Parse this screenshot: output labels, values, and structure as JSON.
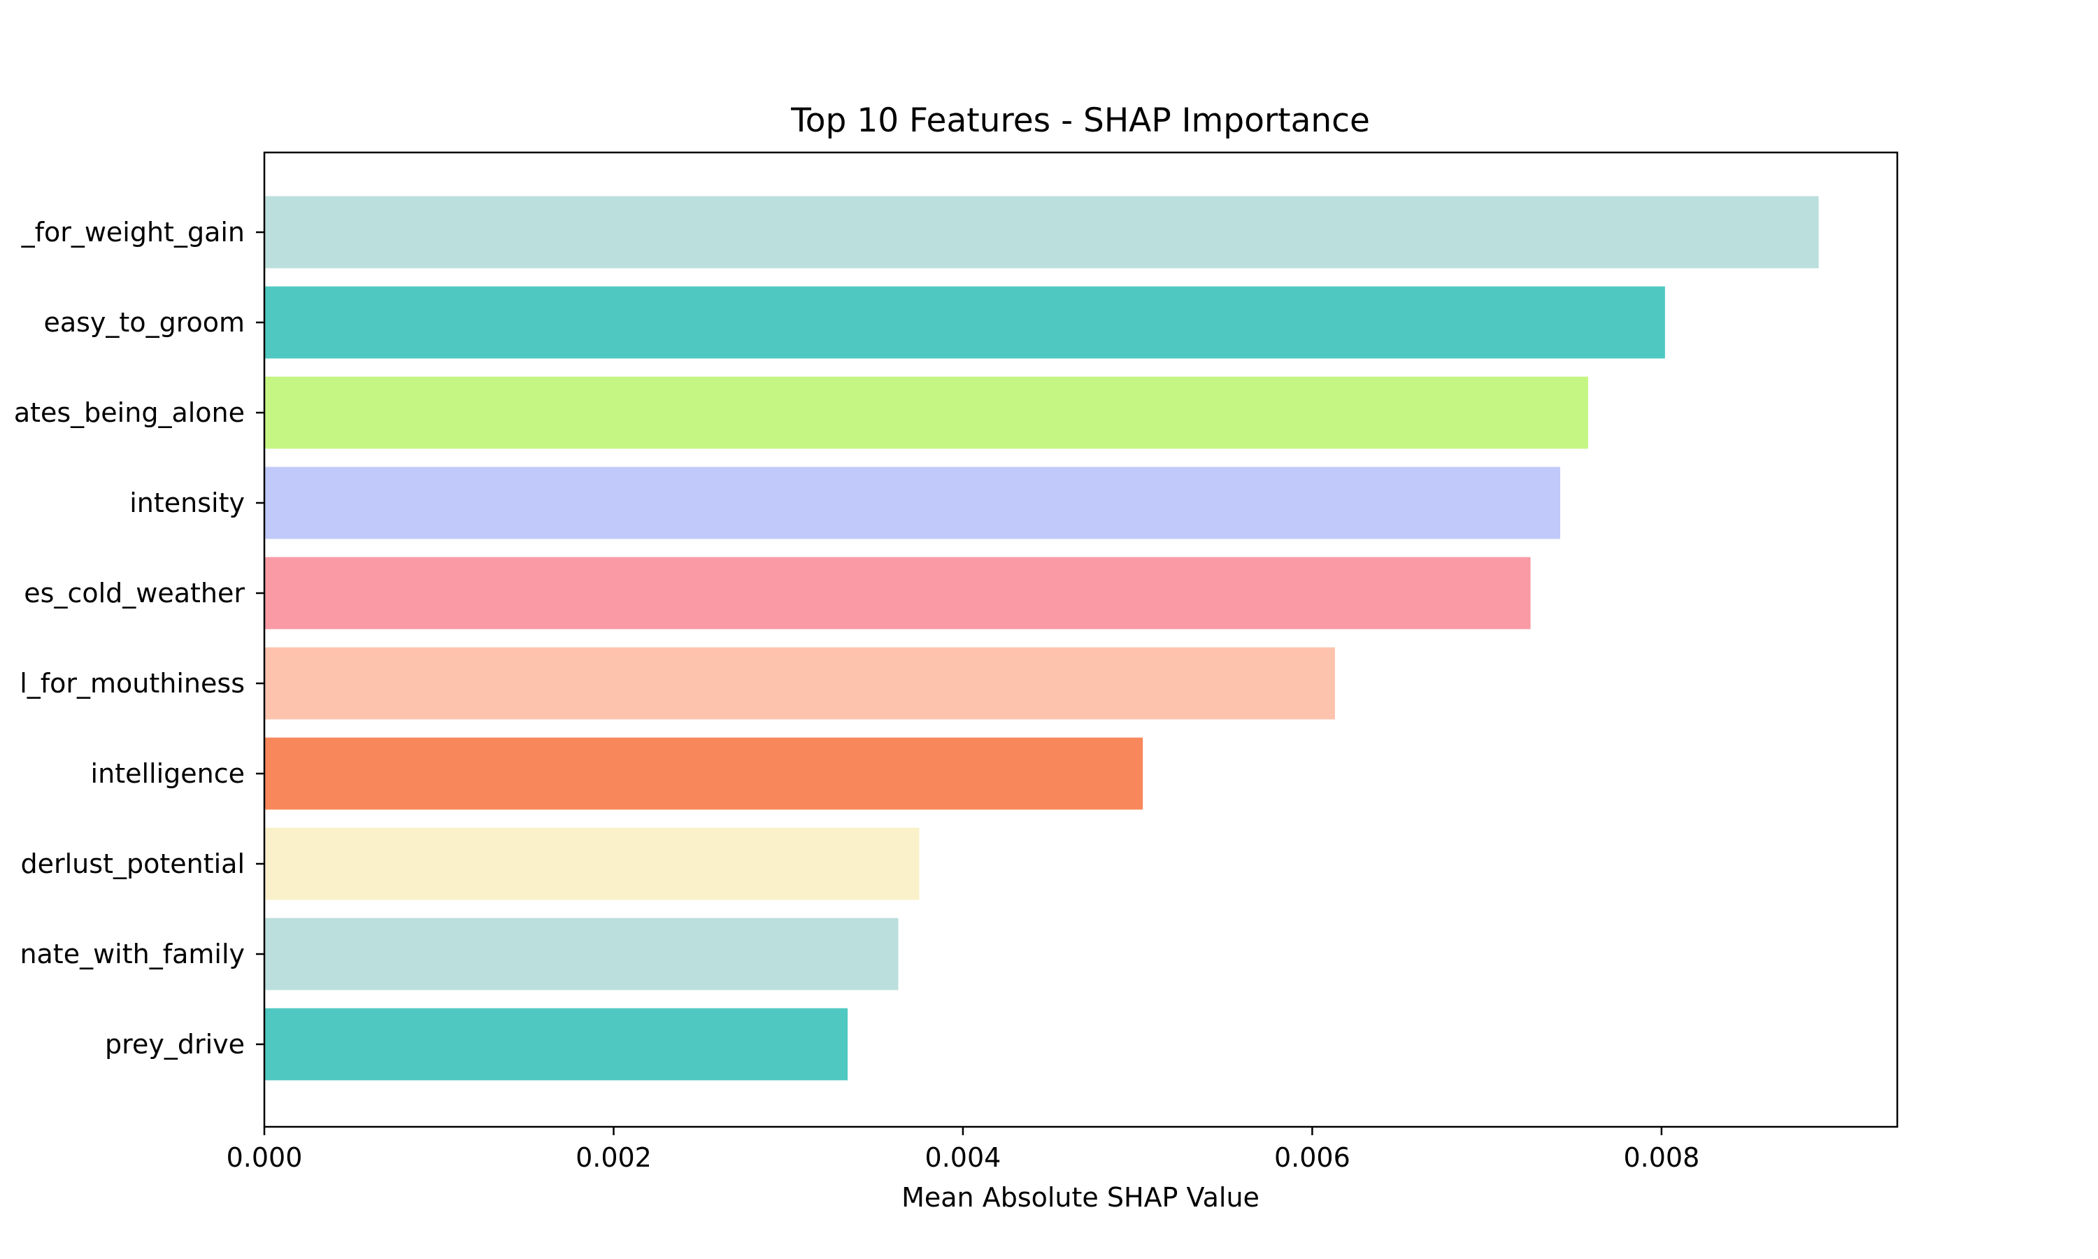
{
  "chart_data": {
    "type": "bar",
    "orientation": "horizontal",
    "title": "Top 10 Features - SHAP Importance",
    "xlabel": "Mean Absolute SHAP Value",
    "ylabel": "",
    "categories": [
      "_for_weight_gain",
      "easy_to_groom",
      "ates_being_alone",
      "intensity",
      "es_cold_weather",
      "l_for_mouthiness",
      "intelligence",
      "derlust_potential",
      "nate_with_family",
      "prey_drive"
    ],
    "values": [
      0.0089,
      0.00802,
      0.00758,
      0.00742,
      0.00725,
      0.00613,
      0.00503,
      0.00375,
      0.00363,
      0.00334
    ],
    "colors": [
      "#bbdfdc",
      "#4ec8c0",
      "#c5f684",
      "#c0c9fa",
      "#f99aa5",
      "#fec3ac",
      "#f8885b",
      "#faf0ca",
      "#bbdfdc",
      "#4ec8c0"
    ],
    "xlim": [
      0,
      0.00935
    ],
    "xticks": [
      0,
      0.002,
      0.004,
      0.006,
      0.008
    ],
    "xtick_labels": [
      "0.000",
      "0.002",
      "0.004",
      "0.006",
      "0.008"
    ],
    "grid": false,
    "legend": "none"
  }
}
